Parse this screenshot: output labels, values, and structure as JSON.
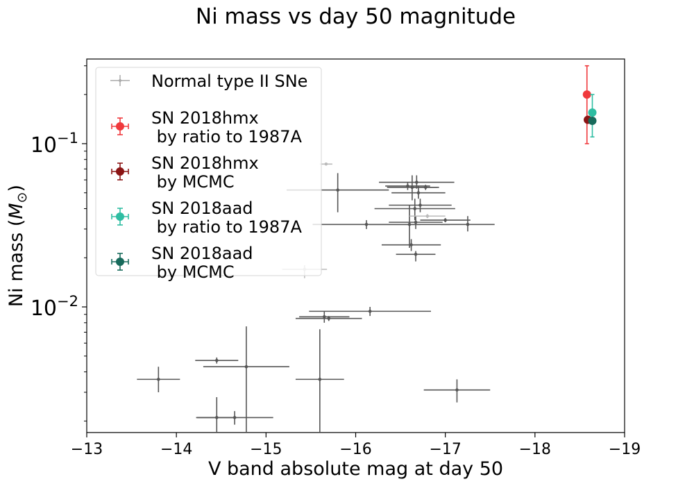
{
  "chart_data": {
    "type": "scatter",
    "title": "Ni mass vs day 50 magnitude",
    "xlabel": "V band absolute mag at day 50",
    "ylabel_prefix": "Ni mass (",
    "ylabel_symbol": "M",
    "ylabel_subscript": "⊙",
    "ylabel_suffix": ")",
    "x_scale": "linear",
    "y_scale": "log",
    "xlim": [
      -13,
      -19
    ],
    "ylim": [
      0.0017,
      0.33
    ],
    "x_ticks": [
      -13,
      -14,
      -15,
      -16,
      -17,
      -18,
      -19
    ],
    "x_tick_labels": [
      "−13",
      "−14",
      "−15",
      "−16",
      "−17",
      "−18",
      "−19"
    ],
    "y_major_ticks": [
      {
        "value": 0.01,
        "base": "10",
        "exp": "−2"
      },
      {
        "value": 0.1,
        "base": "10",
        "exp": "−1"
      }
    ],
    "grid": false,
    "legend_position": "top-left",
    "series": [
      {
        "name": "Normal type II SNe",
        "color": "#555555",
        "marker": "dot",
        "points": [
          {
            "x": -13.8,
            "y": 0.0036,
            "xerr": 0.24,
            "ylo": 0.003,
            "yhi": 0.0043
          },
          {
            "x": -14.45,
            "y": 0.0047,
            "xerr": 0.24,
            "ylo": 0.0045,
            "yhi": 0.0049
          },
          {
            "x": -14.45,
            "y": 0.0021,
            "xerr": 0.22,
            "ylo": 0.0017,
            "yhi": 0.0028
          },
          {
            "x": -14.65,
            "y": 0.0021,
            "xerr": 0.43,
            "ylo": 0.0019,
            "yhi": 0.0023
          },
          {
            "x": -14.78,
            "y": 0.0043,
            "xerr": 0.48,
            "ylo": 0.0017,
            "yhi": 0.0076
          },
          {
            "x": -15.6,
            "y": 0.0036,
            "xerr": 0.27,
            "ylo": 0.0017,
            "yhi": 0.0073
          },
          {
            "x": -15.65,
            "y": 0.0087,
            "xerr": 0.28,
            "ylo": 0.008,
            "yhi": 0.0094
          },
          {
            "x": -15.7,
            "y": 0.0085,
            "xerr": 0.37,
            "ylo": 0.0082,
            "yhi": 0.0088
          },
          {
            "x": -16.16,
            "y": 0.0094,
            "xerr": 0.68,
            "ylo": 0.0088,
            "yhi": 0.01
          },
          {
            "x": -17.13,
            "y": 0.0031,
            "xerr": 0.37,
            "ylo": 0.0026,
            "yhi": 0.0036
          },
          {
            "x": -15.8,
            "y": 0.052,
            "xerr": 0.57,
            "ylo": 0.038,
            "yhi": 0.066
          },
          {
            "x": -16.12,
            "y": 0.032,
            "xerr": 0.6,
            "ylo": 0.03,
            "yhi": 0.034
          },
          {
            "x": -16.58,
            "y": 0.055,
            "xerr": 0.25,
            "ylo": 0.052,
            "yhi": 0.058
          },
          {
            "x": -16.63,
            "y": 0.054,
            "xerr": 0.28,
            "ylo": 0.045,
            "yhi": 0.064
          },
          {
            "x": -16.68,
            "y": 0.058,
            "xerr": 0.42,
            "ylo": 0.053,
            "yhi": 0.064
          },
          {
            "x": -16.7,
            "y": 0.05,
            "xerr": 0.3,
            "ylo": 0.046,
            "yhi": 0.055
          },
          {
            "x": -16.78,
            "y": 0.054,
            "xerr": 0.15,
            "ylo": 0.052,
            "yhi": 0.056
          },
          {
            "x": -16.66,
            "y": 0.04,
            "xerr": 0.45,
            "ylo": 0.034,
            "yhi": 0.046
          },
          {
            "x": -16.72,
            "y": 0.042,
            "xerr": 0.35,
            "ylo": 0.038,
            "yhi": 0.046
          },
          {
            "x": -16.6,
            "y": 0.032,
            "xerr": 0.45,
            "ylo": 0.023,
            "yhi": 0.042
          },
          {
            "x": -16.67,
            "y": 0.033,
            "xerr": 0.3,
            "ylo": 0.03,
            "yhi": 0.036
          },
          {
            "x": -17.0,
            "y": 0.034,
            "xerr": 0.28,
            "ylo": 0.033,
            "yhi": 0.035
          },
          {
            "x": -17.25,
            "y": 0.032,
            "xerr": 0.3,
            "ylo": 0.029,
            "yhi": 0.036
          },
          {
            "x": -16.62,
            "y": 0.024,
            "xerr": 0.33,
            "ylo": 0.022,
            "yhi": 0.026
          },
          {
            "x": -16.67,
            "y": 0.021,
            "xerr": 0.22,
            "ylo": 0.019,
            "yhi": 0.022
          }
        ]
      },
      {
        "name": "Normal type II SNe",
        "color": "#bbbbbb",
        "marker": "dot",
        "points": [
          {
            "x": -15.67,
            "y": 0.075,
            "xerr": 0.07,
            "ylo": 0.074,
            "yhi": 0.076
          },
          {
            "x": -15.43,
            "y": 0.017,
            "xerr": 0.25,
            "ylo": 0.015,
            "yhi": 0.018
          },
          {
            "x": -16.8,
            "y": 0.036,
            "xerr": 0.2,
            "ylo": 0.035,
            "yhi": 0.037
          }
        ]
      },
      {
        "name": "SN 2018hmx\n by ratio to 1987A",
        "color": "#f0393c",
        "marker": "circle",
        "points": [
          {
            "x": -18.58,
            "y": 0.2,
            "xerr": 0.0,
            "ylo": 0.1,
            "yhi": 0.3
          }
        ]
      },
      {
        "name": "SN 2018hmx\n by MCMC",
        "color": "#8b1414",
        "marker": "circle",
        "points": [
          {
            "x": -18.59,
            "y": 0.14,
            "xerr": 0.0,
            "ylo": 0.14,
            "yhi": 0.14
          }
        ]
      },
      {
        "name": "SN 2018aad\n by ratio to 1987A",
        "color": "#2ebda2",
        "marker": "circle",
        "points": [
          {
            "x": -18.64,
            "y": 0.155,
            "xerr": 0.0,
            "ylo": 0.11,
            "yhi": 0.2
          }
        ]
      },
      {
        "name": "SN 2018aad\n by MCMC",
        "color": "#176a5b",
        "marker": "circle",
        "points": [
          {
            "x": -18.64,
            "y": 0.138,
            "xerr": 0.0,
            "ylo": 0.138,
            "yhi": 0.138
          }
        ]
      }
    ],
    "legend": [
      {
        "lines": [
          "Normal type II SNe"
        ],
        "color": "#aaaaaa",
        "style": "small"
      },
      {
        "lines": [
          "SN 2018hmx",
          " by ratio to 1987A"
        ],
        "color": "#f0393c",
        "style": "big"
      },
      {
        "lines": [
          "SN 2018hmx",
          " by MCMC"
        ],
        "color": "#8b1414",
        "style": "big"
      },
      {
        "lines": [
          "SN 2018aad",
          " by ratio to 1987A"
        ],
        "color": "#2ebda2",
        "style": "big"
      },
      {
        "lines": [
          "SN 2018aad",
          " by MCMC"
        ],
        "color": "#176a5b",
        "style": "big"
      }
    ]
  }
}
